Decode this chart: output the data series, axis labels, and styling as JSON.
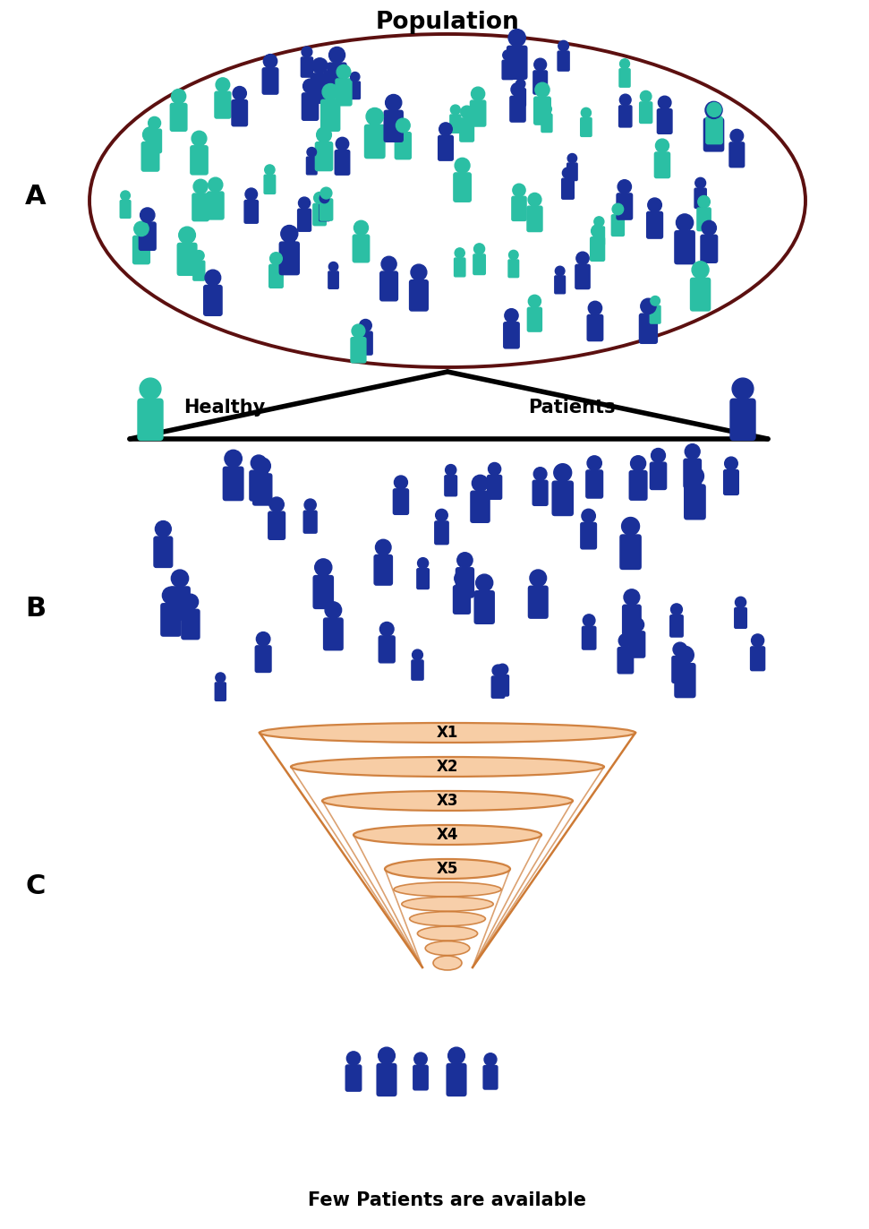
{
  "title": "Population",
  "label_A": "A",
  "label_B": "B",
  "label_C": "C",
  "label_healthy": "Healthy",
  "label_patients": "Patients",
  "label_few": "Few Patients are available",
  "teal_color": "#2BBFA4",
  "blue_color": "#1A3099",
  "funnel_fill": "#F7C99E",
  "funnel_edge": "#CD7A35",
  "ellipse_border": "#5C1010",
  "funnel_labels": [
    "X1",
    "X2",
    "X3",
    "X4",
    "X5"
  ],
  "bg_color": "#FFFFFF",
  "fig_w": 9.71,
  "fig_h": 13.72,
  "dpi": 100
}
